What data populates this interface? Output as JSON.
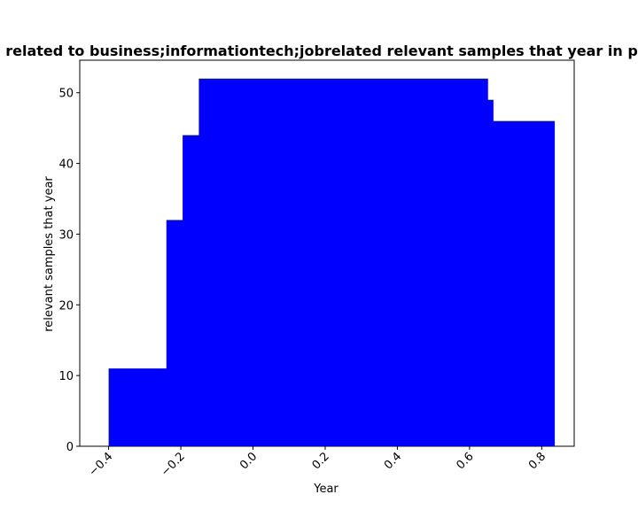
{
  "chart_data": {
    "type": "bar",
    "title": "related to business;informationtech;jobrelated relevant samples that year in p",
    "xlabel": "Year",
    "ylabel": "relevant samples that year",
    "xlim": [
      -0.48,
      0.89
    ],
    "ylim": [
      0,
      54.6
    ],
    "x_ticks": [
      -0.4,
      -0.2,
      0.0,
      0.2,
      0.4,
      0.6,
      0.8
    ],
    "x_tick_labels": [
      "−0.4",
      "−0.2",
      "0.0",
      "0.2",
      "0.4",
      "0.6",
      "0.8"
    ],
    "y_ticks": [
      0,
      10,
      20,
      30,
      40,
      50
    ],
    "y_tick_labels": [
      "0",
      "10",
      "20",
      "30",
      "40",
      "50"
    ],
    "bar_color": "#0000ff",
    "grid": false,
    "bars": [
      {
        "x_start": -0.4,
        "x_end": -0.24,
        "value": 11
      },
      {
        "x_start": -0.24,
        "x_end": -0.195,
        "value": 32
      },
      {
        "x_start": -0.195,
        "x_end": -0.15,
        "value": 44
      },
      {
        "x_start": -0.15,
        "x_end": 0.65,
        "value": 52
      },
      {
        "x_start": 0.65,
        "x_end": 0.665,
        "value": 49
      },
      {
        "x_start": 0.665,
        "x_end": 0.835,
        "value": 46
      }
    ]
  }
}
